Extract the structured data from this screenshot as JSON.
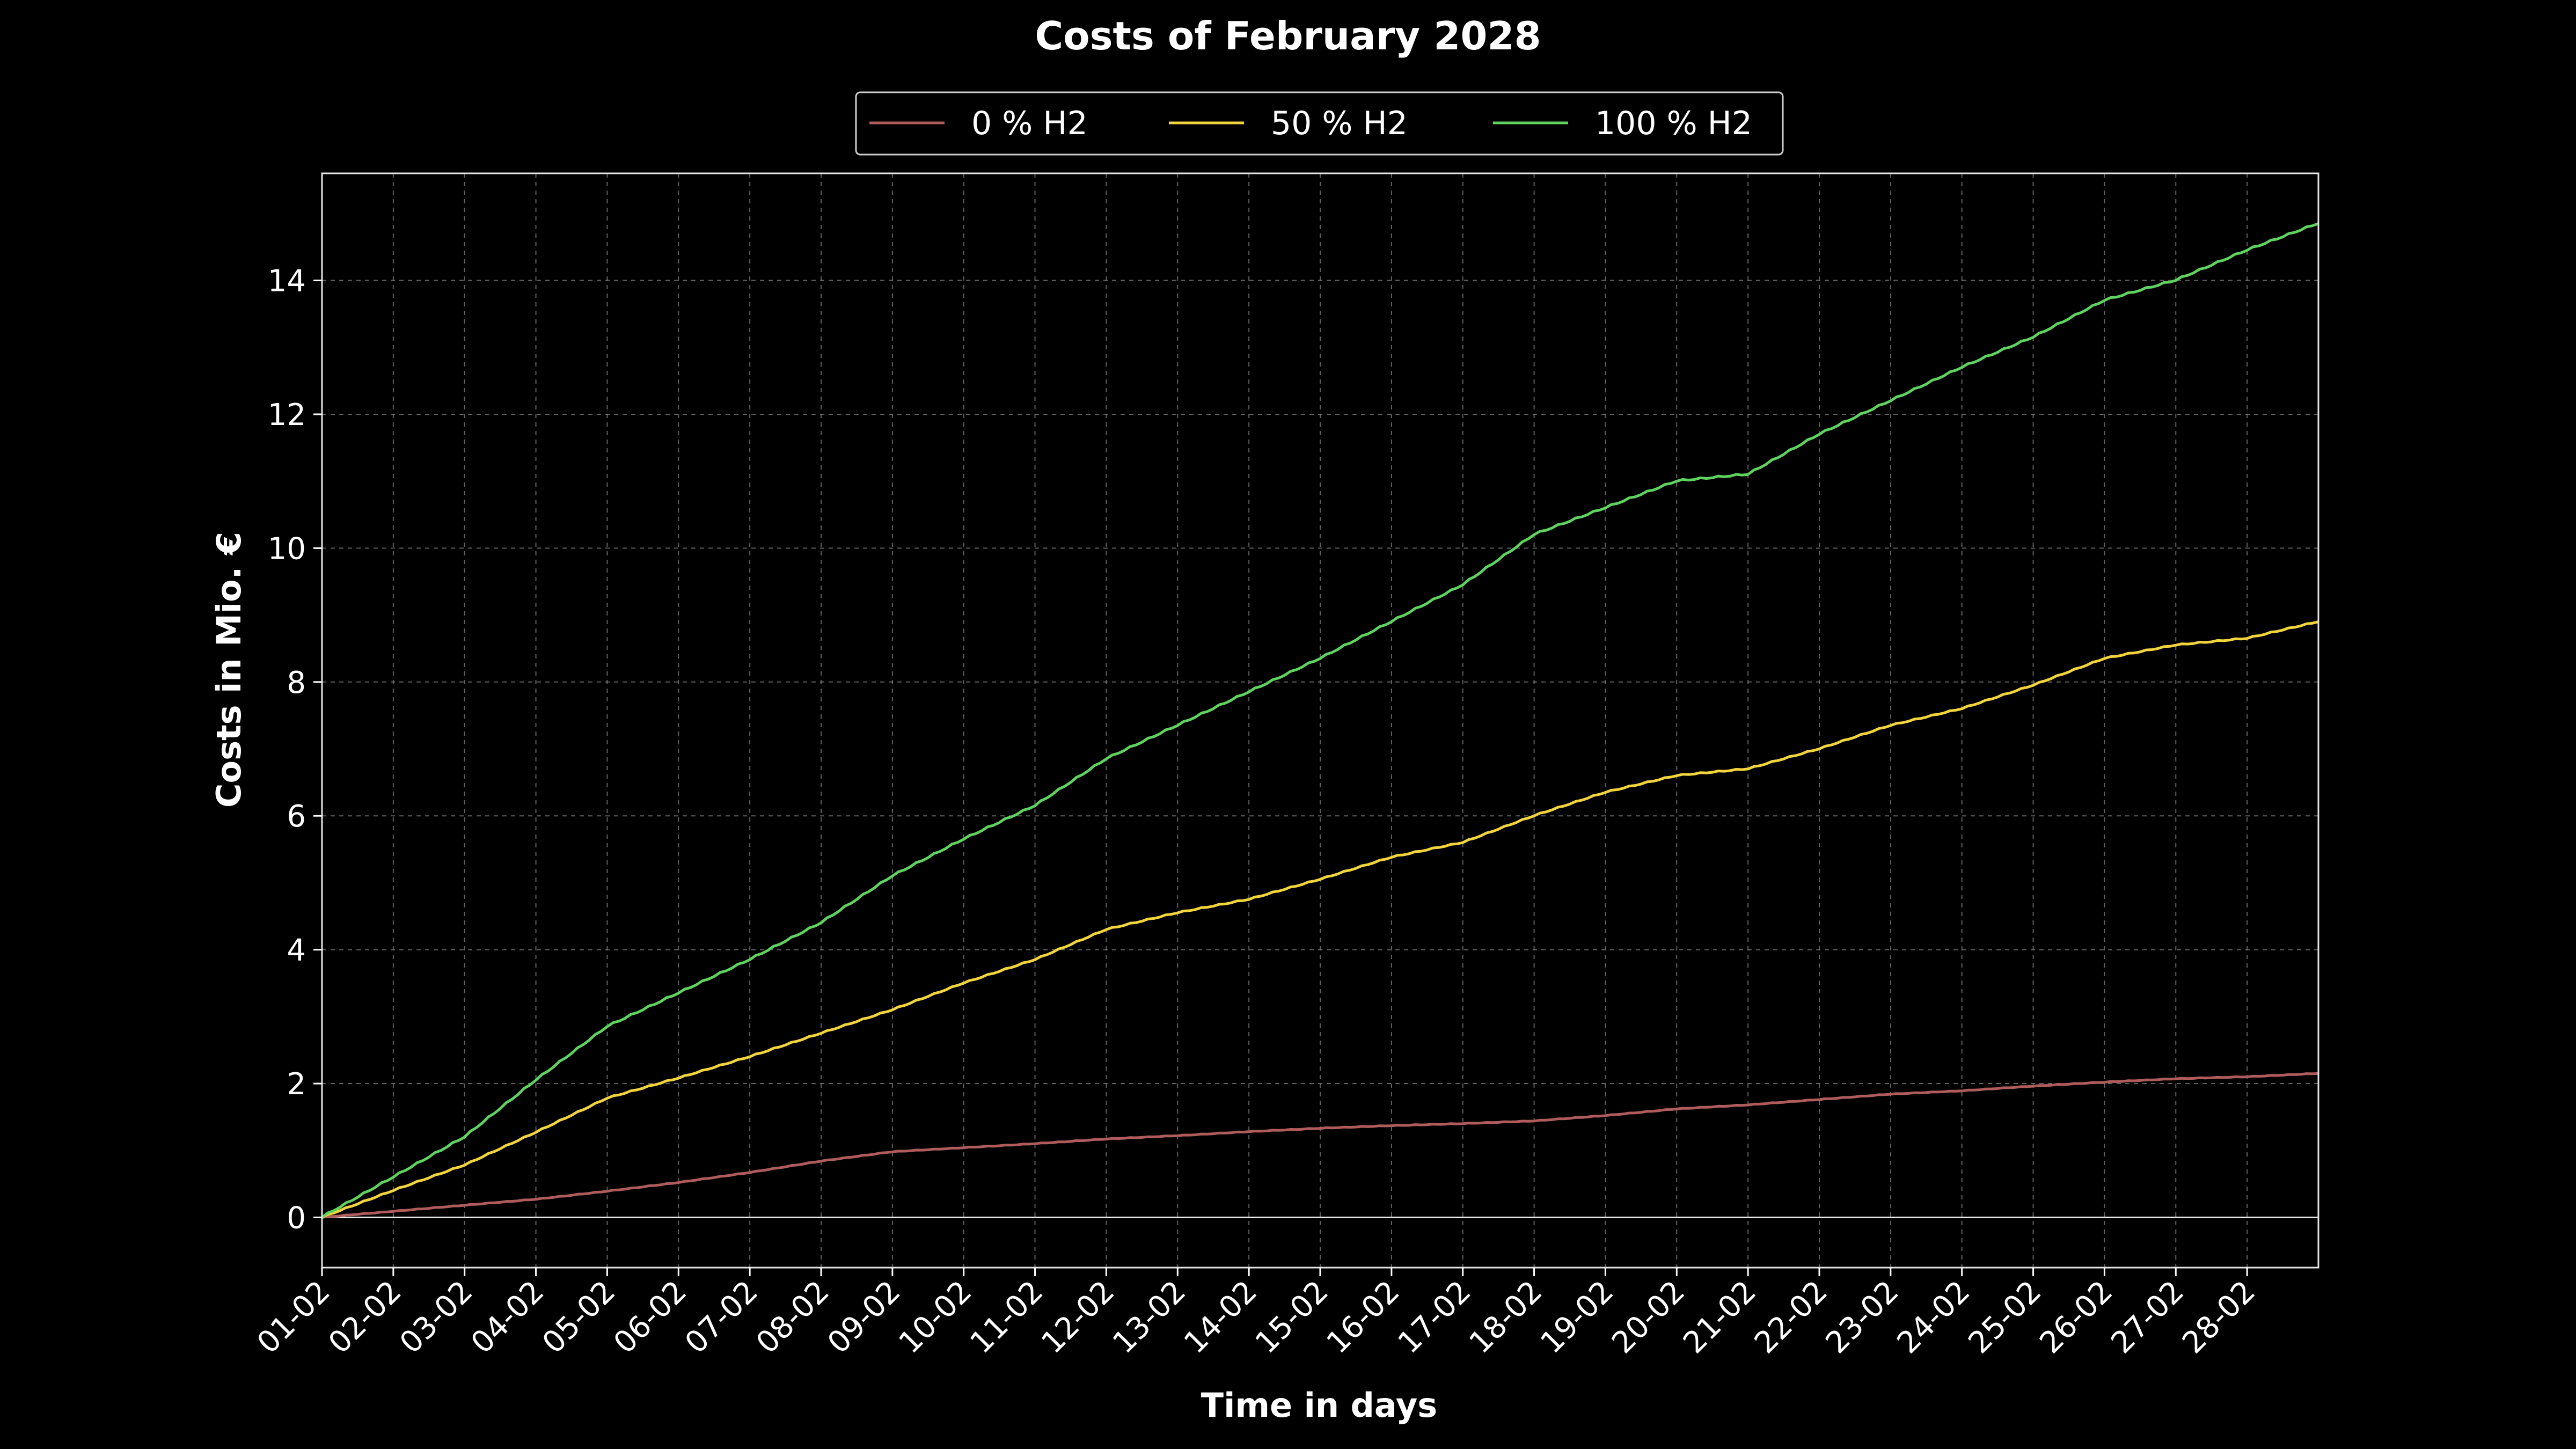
{
  "chart_data": {
    "type": "line",
    "title": "Costs of February 2028",
    "xlabel": "Time in days",
    "ylabel": "Costs in Mio. €",
    "x_ticks": [
      "01-02",
      "02-02",
      "03-02",
      "04-02",
      "05-02",
      "06-02",
      "07-02",
      "08-02",
      "09-02",
      "10-02",
      "11-02",
      "12-02",
      "13-02",
      "14-02",
      "15-02",
      "16-02",
      "17-02",
      "18-02",
      "19-02",
      "20-02",
      "21-02",
      "22-02",
      "23-02",
      "24-02",
      "25-02",
      "26-02",
      "27-02",
      "28-02"
    ],
    "xlim": [
      1,
      29
    ],
    "ylim": [
      -0.75,
      15.6
    ],
    "y_ticks": [
      0,
      2,
      4,
      6,
      8,
      10,
      12,
      14
    ],
    "grid": true,
    "legend_position": "top-center",
    "x": [
      1,
      2,
      3,
      4,
      5,
      6,
      7,
      8,
      9,
      10,
      11,
      12,
      13,
      14,
      15,
      16,
      17,
      18,
      19,
      20,
      21,
      22,
      23,
      24,
      25,
      26,
      27,
      28,
      29
    ],
    "series": [
      {
        "name": "0 % H2",
        "color": "#b05c5c",
        "values": [
          0.0,
          0.09,
          0.18,
          0.27,
          0.39,
          0.52,
          0.67,
          0.84,
          0.98,
          1.04,
          1.1,
          1.17,
          1.22,
          1.28,
          1.33,
          1.37,
          1.4,
          1.44,
          1.52,
          1.62,
          1.68,
          1.76,
          1.84,
          1.89,
          1.96,
          2.02,
          2.07,
          2.1,
          2.15
        ]
      },
      {
        "name": "50 % H2",
        "color": "#f2d43c",
        "values": [
          0.0,
          0.4,
          0.78,
          1.27,
          1.78,
          2.08,
          2.4,
          2.75,
          3.1,
          3.5,
          3.85,
          4.3,
          4.55,
          4.75,
          5.05,
          5.38,
          5.6,
          6.0,
          6.35,
          6.6,
          6.7,
          7.0,
          7.35,
          7.6,
          7.95,
          8.35,
          8.55,
          8.65,
          8.9
        ]
      },
      {
        "name": "100 % H2",
        "color": "#5fd35f",
        "values": [
          0.0,
          0.6,
          1.2,
          2.05,
          2.85,
          3.35,
          3.85,
          4.4,
          5.1,
          5.65,
          6.15,
          6.85,
          7.35,
          7.85,
          8.35,
          8.9,
          9.45,
          10.2,
          10.6,
          11.0,
          11.1,
          11.7,
          12.2,
          12.7,
          13.15,
          13.7,
          14.0,
          14.45,
          14.85
        ]
      }
    ]
  }
}
